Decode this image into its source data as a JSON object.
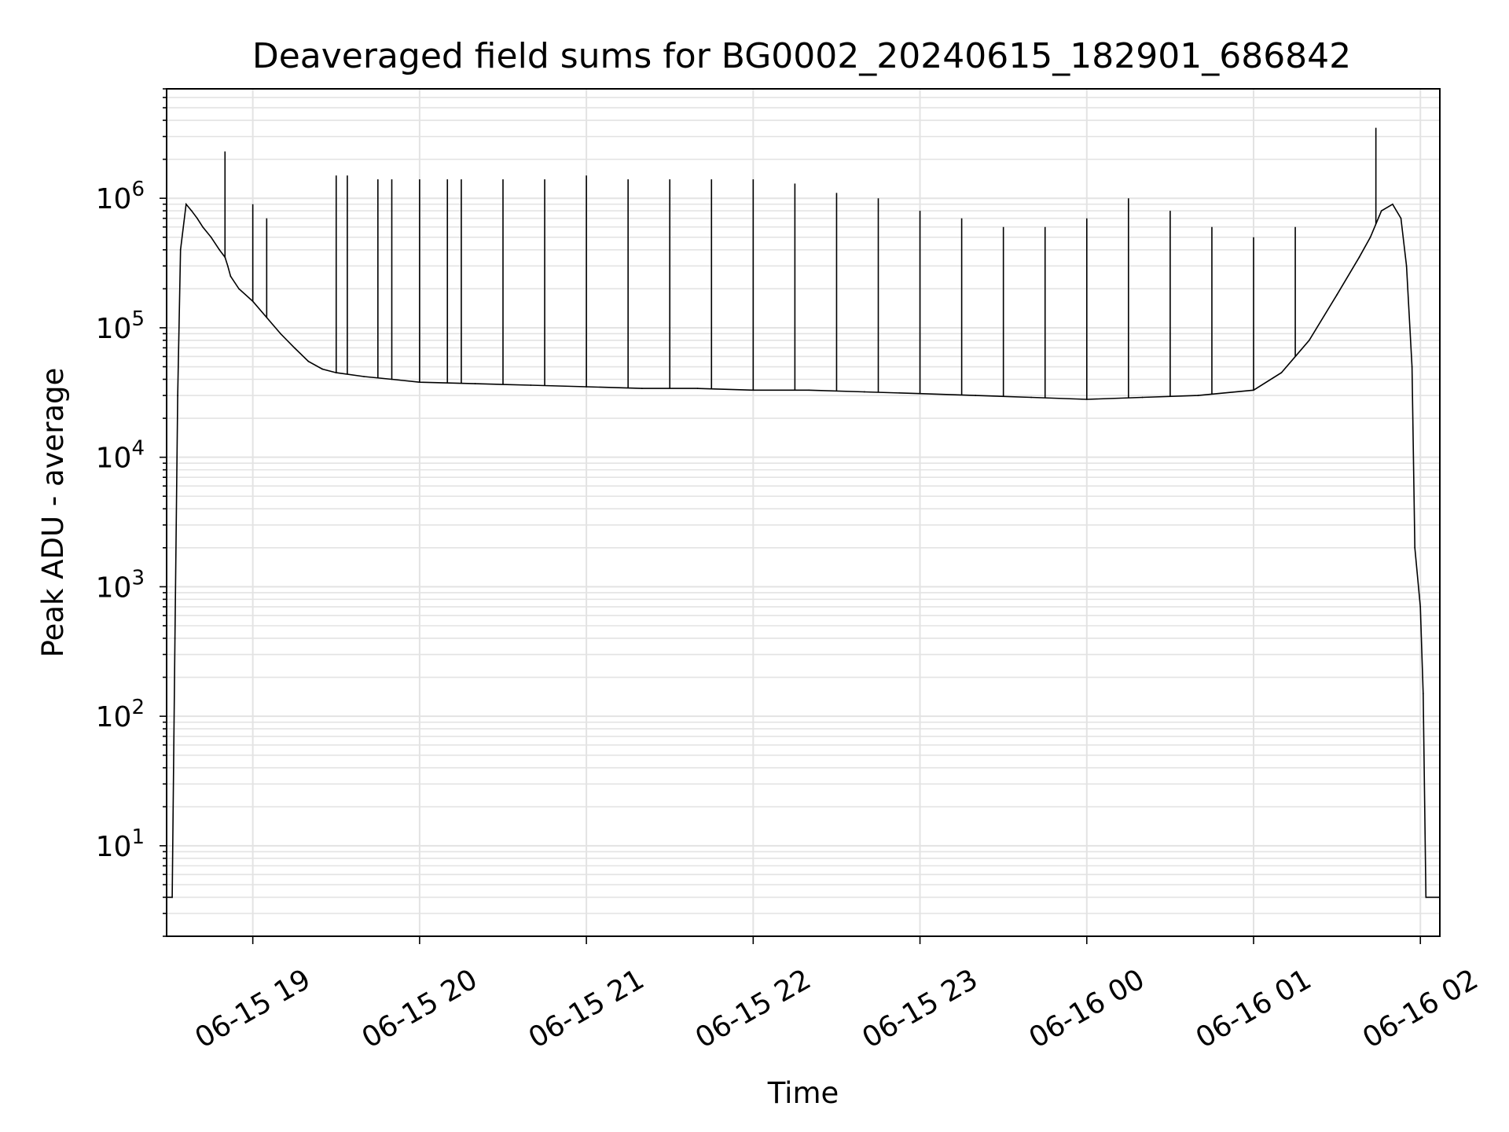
{
  "chart_data": {
    "type": "line",
    "title": "Deaveraged field sums for BG0002_20240615_182901_686842",
    "xlabel": "Time",
    "ylabel": "Peak ADU - average",
    "yscale": "log",
    "ylim": [
      2,
      7000000
    ],
    "xlim": [
      "2024-06-15 18:29",
      "2024-06-16 02:07"
    ],
    "grid": true,
    "line_color": "#000000",
    "x_tick_labels": [
      "06-15 19",
      "06-15 20",
      "06-15 21",
      "06-15 22",
      "06-15 23",
      "06-16 00",
      "06-16 01",
      "06-16 02"
    ],
    "x_tick_values": [
      "2024-06-15 19:00",
      "2024-06-15 20:00",
      "2024-06-15 21:00",
      "2024-06-15 22:00",
      "2024-06-15 23:00",
      "2024-06-16 00:00",
      "2024-06-16 01:00",
      "2024-06-16 02:00"
    ],
    "y_ticks": [
      {
        "value": 10,
        "base": "10",
        "exp": "1"
      },
      {
        "value": 100,
        "base": "10",
        "exp": "2"
      },
      {
        "value": 1000,
        "base": "10",
        "exp": "3"
      },
      {
        "value": 10000,
        "base": "10",
        "exp": "4"
      },
      {
        "value": 100000,
        "base": "10",
        "exp": "5"
      },
      {
        "value": 1000000,
        "base": "10",
        "exp": "6"
      }
    ],
    "series": [
      {
        "x": [
          "2024-06-15 18:29",
          "2024-06-15 18:31",
          "2024-06-15 18:32",
          "2024-06-15 18:33",
          "2024-06-15 18:34",
          "2024-06-15 18:36",
          "2024-06-15 18:38",
          "2024-06-15 18:40",
          "2024-06-15 18:42",
          "2024-06-15 18:45",
          "2024-06-15 18:48",
          "2024-06-15 18:50",
          "2024-06-15 18:51",
          "2024-06-15 18:52",
          "2024-06-15 18:55",
          "2024-06-15 19:00",
          "2024-06-15 19:05",
          "2024-06-15 19:10",
          "2024-06-15 19:15",
          "2024-06-15 19:20",
          "2024-06-15 19:25",
          "2024-06-15 19:30",
          "2024-06-15 19:40",
          "2024-06-15 19:50",
          "2024-06-15 20:00",
          "2024-06-15 20:20",
          "2024-06-15 20:40",
          "2024-06-15 21:00",
          "2024-06-15 21:20",
          "2024-06-15 21:40",
          "2024-06-15 22:00",
          "2024-06-15 22:20",
          "2024-06-15 22:40",
          "2024-06-15 23:00",
          "2024-06-15 23:20",
          "2024-06-15 23:40",
          "2024-06-16 00:00",
          "2024-06-16 00:20",
          "2024-06-16 00:40",
          "2024-06-16 01:00",
          "2024-06-16 01:10",
          "2024-06-16 01:20",
          "2024-06-16 01:30",
          "2024-06-16 01:38",
          "2024-06-16 01:42",
          "2024-06-16 01:46",
          "2024-06-16 01:50",
          "2024-06-16 01:53",
          "2024-06-16 01:55",
          "2024-06-16 01:57",
          "2024-06-16 01:58",
          "2024-06-16 02:00",
          "2024-06-16 02:01",
          "2024-06-16 02:02",
          "2024-06-16 02:07"
        ],
        "values": [
          4,
          4,
          400,
          30000,
          400000,
          900000,
          800000,
          700000,
          600000,
          500000,
          400000,
          350000,
          300000,
          250000,
          200000,
          160000,
          120000,
          90000,
          70000,
          55000,
          48000,
          45000,
          42000,
          40000,
          38000,
          37000,
          36000,
          35000,
          34000,
          34000,
          33000,
          33000,
          32000,
          31000,
          30000,
          29000,
          28000,
          29000,
          30000,
          33000,
          45000,
          80000,
          180000,
          350000,
          500000,
          800000,
          900000,
          700000,
          300000,
          50000,
          2000,
          700,
          150,
          4,
          4
        ]
      }
    ],
    "spikes": {
      "x": [
        "2024-06-15 18:50",
        "2024-06-15 19:00",
        "2024-06-15 19:05",
        "2024-06-15 19:30",
        "2024-06-15 19:34",
        "2024-06-15 19:45",
        "2024-06-15 19:50",
        "2024-06-15 20:00",
        "2024-06-15 20:10",
        "2024-06-15 20:15",
        "2024-06-15 20:30",
        "2024-06-15 20:45",
        "2024-06-15 21:00",
        "2024-06-15 21:15",
        "2024-06-15 21:30",
        "2024-06-15 21:45",
        "2024-06-15 22:00",
        "2024-06-15 22:15",
        "2024-06-15 22:30",
        "2024-06-15 22:45",
        "2024-06-15 23:00",
        "2024-06-15 23:15",
        "2024-06-15 23:30",
        "2024-06-15 23:45",
        "2024-06-16 00:00",
        "2024-06-16 00:15",
        "2024-06-16 00:30",
        "2024-06-16 00:45",
        "2024-06-16 01:00",
        "2024-06-16 01:15",
        "2024-06-16 01:44"
      ],
      "values": [
        2300000,
        900000,
        700000,
        1500000,
        1500000,
        1400000,
        1400000,
        1400000,
        1400000,
        1400000,
        1400000,
        1400000,
        1500000,
        1400000,
        1400000,
        1400000,
        1400000,
        1300000,
        1100000,
        1000000,
        800000,
        700000,
        600000,
        600000,
        700000,
        1000000,
        800000,
        600000,
        500000,
        600000,
        3500000
      ]
    }
  }
}
